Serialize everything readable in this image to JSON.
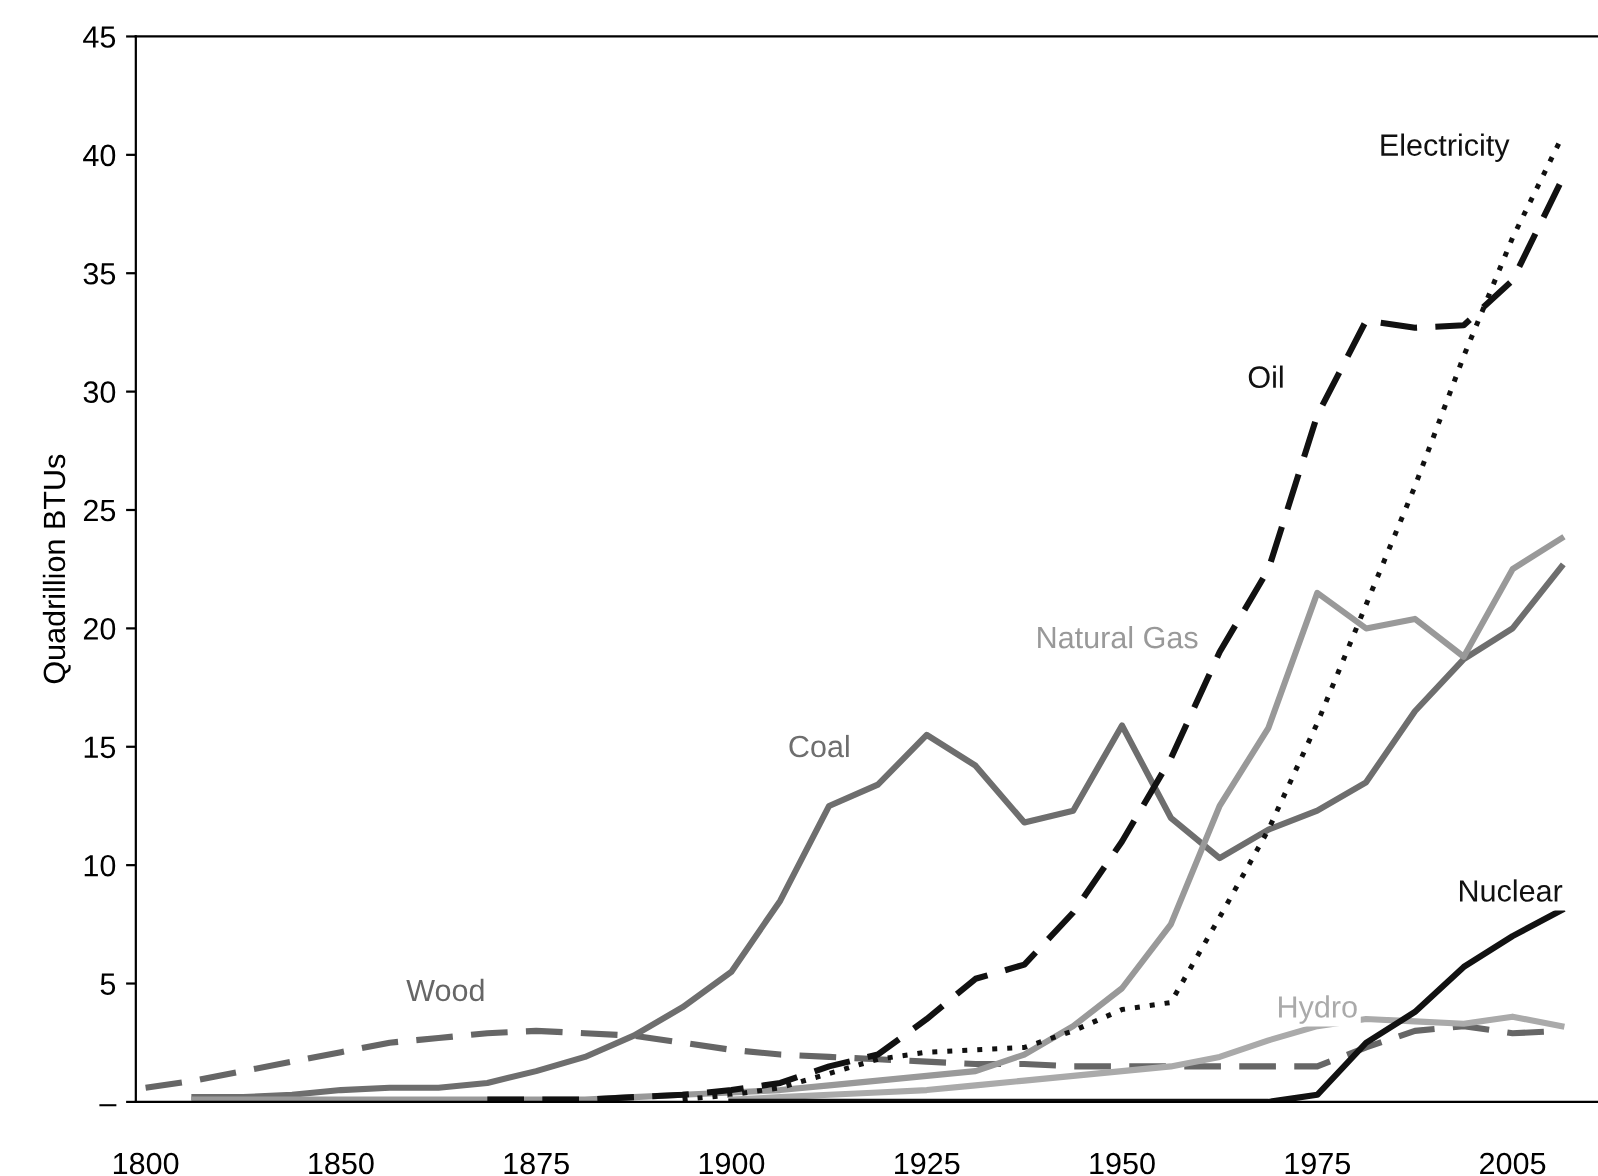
{
  "chart_data": {
    "type": "line",
    "ylabel": "Quadrillion BTUs",
    "categories": [
      "1800",
      null,
      null,
      null,
      "1850",
      null,
      null,
      null,
      "1875",
      null,
      null,
      null,
      "1900",
      null,
      null,
      null,
      "1925",
      null,
      null,
      null,
      "1950",
      null,
      null,
      null,
      "1975",
      null,
      null,
      null,
      "2005",
      null
    ],
    "ylim": [
      0,
      45
    ],
    "yticks": [
      {
        "value": 0,
        "label": "–"
      },
      5,
      10,
      15,
      20,
      25,
      30,
      35,
      40,
      45
    ],
    "grid": false,
    "legend": false,
    "marker": "none",
    "series": [
      {
        "name": "Wood",
        "color": "#666666",
        "line_style": "dashed",
        "values": [
          0.6,
          0.9,
          1.3,
          1.7,
          2.1,
          2.5,
          2.7,
          2.9,
          3.0,
          2.9,
          2.8,
          2.5,
          2.2,
          2.0,
          1.9,
          1.8,
          1.7,
          1.6,
          1.6,
          1.5,
          1.5,
          1.5,
          1.5,
          1.5,
          1.5,
          2.3,
          3.0,
          3.2,
          2.9,
          3.0
        ]
      },
      {
        "name": "Coal",
        "color": "#6e6e6e",
        "line_style": "solid",
        "values": [
          null,
          0.2,
          0.2,
          0.3,
          0.5,
          0.6,
          0.6,
          0.8,
          1.3,
          1.9,
          2.8,
          4.0,
          5.5,
          8.5,
          12.5,
          13.4,
          15.5,
          14.2,
          11.8,
          12.3,
          15.9,
          12.0,
          10.3,
          11.5,
          12.3,
          13.5,
          16.5,
          18.7,
          20.0,
          22.6
        ]
      },
      {
        "name": "Natural Gas",
        "color": "#999999",
        "line_style": "solid",
        "values": [
          null,
          0.1,
          0.1,
          0.1,
          0.1,
          0.1,
          0.1,
          0.1,
          0.1,
          0.1,
          0.2,
          0.3,
          0.4,
          0.5,
          0.7,
          0.9,
          1.1,
          1.3,
          2.0,
          3.2,
          4.8,
          7.5,
          12.5,
          15.8,
          21.5,
          20.0,
          20.4,
          18.8,
          22.5,
          23.8
        ]
      },
      {
        "name": "Oil",
        "color": "#111111",
        "line_style": "dashed",
        "values": [
          null,
          null,
          null,
          null,
          null,
          null,
          null,
          0.1,
          0.1,
          0.1,
          0.2,
          0.3,
          0.5,
          0.8,
          1.5,
          2.0,
          3.5,
          5.2,
          5.8,
          8.0,
          11.0,
          14.5,
          19.0,
          22.5,
          29.0,
          33.0,
          32.7,
          32.8,
          34.7,
          38.9
        ]
      },
      {
        "name": "Electricity",
        "color": "#111111",
        "line_style": "dotted",
        "values": [
          null,
          null,
          null,
          null,
          null,
          null,
          null,
          null,
          null,
          null,
          null,
          0.1,
          0.3,
          0.6,
          1.2,
          1.8,
          2.1,
          2.2,
          2.3,
          3.0,
          3.9,
          4.2,
          7.8,
          11.5,
          16.0,
          21.0,
          26.0,
          31.5,
          36.5,
          40.7
        ]
      },
      {
        "name": "Hydro",
        "color": "#aaaaaa",
        "line_style": "solid",
        "values": [
          null,
          null,
          null,
          null,
          null,
          null,
          null,
          null,
          null,
          null,
          null,
          null,
          0.1,
          0.2,
          0.3,
          0.4,
          0.5,
          0.7,
          0.9,
          1.1,
          1.3,
          1.5,
          1.9,
          2.6,
          3.2,
          3.5,
          3.4,
          3.3,
          3.6,
          3.2
        ]
      },
      {
        "name": "Nuclear",
        "color": "#111111",
        "line_style": "solid",
        "values": [
          null,
          null,
          null,
          null,
          null,
          null,
          null,
          null,
          null,
          null,
          null,
          null,
          0,
          0,
          0,
          0,
          0,
          0,
          0,
          0,
          0,
          0,
          0,
          0,
          0.3,
          2.5,
          3.8,
          5.7,
          7.0,
          8.1
        ]
      }
    ]
  }
}
